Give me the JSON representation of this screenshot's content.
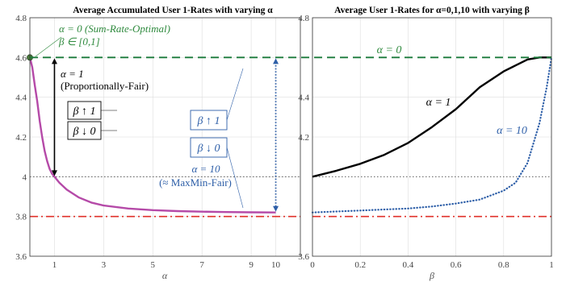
{
  "chart_data": [
    {
      "type": "line",
      "title": "Average Accumulated User 1-Rates with varying α",
      "xlabel": "α",
      "ylabel": "",
      "xlim": [
        0,
        11
      ],
      "ylim": [
        3.6,
        4.8
      ],
      "xticks": [
        "1",
        "3",
        "5",
        "7",
        "9",
        "10"
      ],
      "xtick_values": [
        1,
        3,
        5,
        7,
        9,
        10
      ],
      "yticks": [
        "3.6",
        "3.8",
        "4",
        "4.2",
        "4.4",
        "4.6",
        "4.8"
      ],
      "ytick_values": [
        3.6,
        3.8,
        4.0,
        4.2,
        4.4,
        4.6,
        4.8
      ],
      "grid": true,
      "series": [
        {
          "color": "#b54aa8",
          "style": "solid",
          "x": [
            0,
            0.1,
            0.2,
            0.3,
            0.4,
            0.5,
            0.6,
            0.7,
            0.8,
            0.9,
            1.0,
            1.2,
            1.5,
            2,
            2.5,
            3,
            4,
            5,
            6,
            7,
            8,
            9,
            10
          ],
          "y": [
            4.6,
            4.55,
            4.46,
            4.38,
            4.28,
            4.2,
            4.13,
            4.08,
            4.04,
            4.015,
            4.0,
            3.97,
            3.935,
            3.895,
            3.87,
            3.855,
            3.84,
            3.832,
            3.827,
            3.824,
            3.822,
            3.821,
            3.82
          ]
        }
      ],
      "reference_lines": [
        {
          "y": 4.6,
          "color": "#1a7a3a",
          "style": "dashed"
        },
        {
          "y": 4.0,
          "color": "#444444",
          "style": "dotted"
        },
        {
          "y": 3.8,
          "color": "#e0302a",
          "style": "dashdot"
        }
      ],
      "vertical_arrows": [
        {
          "x": 1,
          "y_from": 4.6,
          "y_to": 4.0,
          "color": "#000000",
          "style": "solid"
        },
        {
          "x": 10,
          "y_from": 4.6,
          "y_to": 3.82,
          "color": "#2e5fa8",
          "style": "dotted"
        }
      ],
      "marker": {
        "x": 0,
        "y": 4.6,
        "color": "#4a7a3a"
      },
      "annotations": {
        "alpha0_line1": "α = 0 (Sum-Rate-Optimal)",
        "alpha0_line2": "β ∈ [0,1]",
        "alpha1_line1": "α = 1",
        "alpha1_line2": "(Proportionally-Fair)",
        "beta_up_black": "β ↑ 1",
        "beta_down_black": "β ↓ 0",
        "beta_up_blue": "β ↑ 1",
        "beta_down_blue": "β ↓ 0",
        "alpha10_line1": "α = 10",
        "alpha10_line2": "(≈ MaxMin-Fair)"
      },
      "colors": {
        "purple": "#b54aa8",
        "green": "#1a7a3a",
        "blue": "#2e5fa8",
        "red": "#e0302a",
        "black": "#000000"
      }
    },
    {
      "type": "line",
      "title": "Average User 1-Rates for α=0,1,10 with varying β",
      "xlabel": "β",
      "ylabel": "",
      "xlim": [
        0,
        1
      ],
      "ylim": [
        3.6,
        4.8
      ],
      "xticks": [
        "0",
        "0.2",
        "0.4",
        "0.6",
        "0.8",
        "1"
      ],
      "xtick_values": [
        0,
        0.2,
        0.4,
        0.6,
        0.8,
        1.0
      ],
      "yticks": [
        "3.6",
        "4.2",
        "4.4",
        "4.8"
      ],
      "ytick_values": [
        3.6,
        4.2,
        4.4,
        4.8
      ],
      "grid": true,
      "series": [
        {
          "name": "α = 0",
          "color": "#1a7a3a",
          "style": "dashed",
          "x": [
            0,
            1
          ],
          "y": [
            4.6,
            4.6
          ]
        },
        {
          "name": "α = 1",
          "color": "#000000",
          "style": "solid",
          "x": [
            0,
            0.1,
            0.2,
            0.3,
            0.4,
            0.5,
            0.6,
            0.7,
            0.8,
            0.85,
            0.9,
            0.95,
            1.0
          ],
          "y": [
            4.0,
            4.03,
            4.065,
            4.11,
            4.17,
            4.25,
            4.34,
            4.45,
            4.53,
            4.56,
            4.59,
            4.6,
            4.6
          ]
        },
        {
          "name": "α = 10",
          "color": "#2e5fa8",
          "style": "dotted",
          "x": [
            0,
            0.1,
            0.2,
            0.3,
            0.4,
            0.5,
            0.6,
            0.7,
            0.8,
            0.85,
            0.9,
            0.95,
            0.98,
            1.0
          ],
          "y": [
            3.82,
            3.825,
            3.83,
            3.835,
            3.84,
            3.85,
            3.865,
            3.885,
            3.93,
            3.97,
            4.07,
            4.27,
            4.45,
            4.6
          ]
        }
      ],
      "reference_lines": [
        {
          "y": 4.0,
          "color": "#444444",
          "style": "dotted"
        },
        {
          "y": 3.8,
          "color": "#e0302a",
          "style": "dashdot"
        }
      ],
      "annotations": {
        "alpha0": "α = 0",
        "alpha1": "α = 1",
        "alpha10": "α = 10"
      },
      "colors": {
        "green": "#1a7a3a",
        "blue": "#2e5fa8",
        "red": "#e0302a",
        "black": "#000000"
      }
    }
  ]
}
